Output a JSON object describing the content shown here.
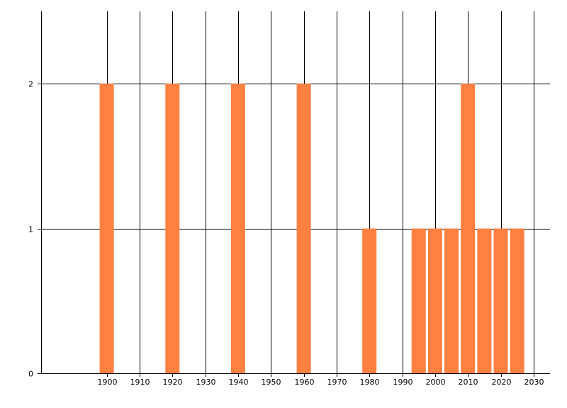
{
  "chart_data": {
    "type": "bar",
    "x": [
      1900,
      1920,
      1940,
      1960,
      1980,
      1995,
      2000,
      2005,
      2010,
      2015,
      2020,
      2025
    ],
    "values": [
      2,
      2,
      2,
      2,
      1,
      1,
      1,
      1,
      2,
      1,
      1,
      1
    ],
    "title": "",
    "xlabel": "",
    "ylabel": "",
    "xlim": [
      1880,
      2035
    ],
    "ylim": [
      0,
      2.5
    ],
    "x_ticks": [
      "1900",
      "1910",
      "1920",
      "1930",
      "1940",
      "1950",
      "1960",
      "1970",
      "1980",
      "1990",
      "2000",
      "2010",
      "2020",
      "2030"
    ],
    "y_ticks": [
      "0",
      "1",
      "2"
    ],
    "grid": true,
    "legend": "none",
    "bar_color": "#ff8040",
    "grid_color": "#000000"
  }
}
